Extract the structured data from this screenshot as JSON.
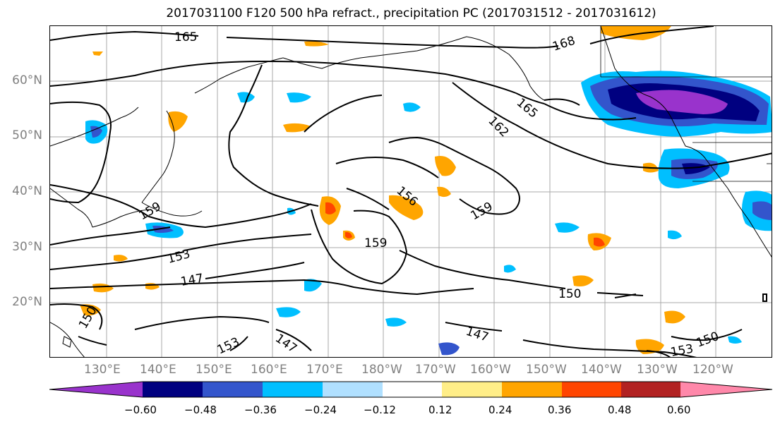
{
  "title": "2017031100 F120 500 hPa refract., precipitation PC (2017031512 - 2017031612)",
  "lat_labels": [
    "60°N",
    "50°N",
    "40°N",
    "30°N",
    "20°N"
  ],
  "lon_labels": [
    "130°E",
    "140°E",
    "150°E",
    "160°E",
    "170°E",
    "180°W",
    "170°W",
    "160°W",
    "150°W",
    "140°W",
    "130°W",
    "120°W"
  ],
  "contour_labels": [
    "165",
    "168",
    "165",
    "162",
    "156",
    "159",
    "159",
    "159",
    "153",
    "147",
    "150",
    "147",
    "147",
    "153",
    "150",
    "153",
    "150"
  ],
  "colorbar": {
    "tick_labels": [
      "−0.60",
      "−0.48",
      "−0.36",
      "−0.24",
      "−0.12",
      "0.12",
      "0.24",
      "0.36",
      "0.48",
      "0.60"
    ],
    "colors": [
      "#9933cc",
      "#000080",
      "#3355cc",
      "#00bfff",
      "#b0e0ff",
      "#ffffff",
      "#ffee88",
      "#ffa500",
      "#ff4500",
      "#b22222",
      "#ff88aa"
    ]
  }
}
